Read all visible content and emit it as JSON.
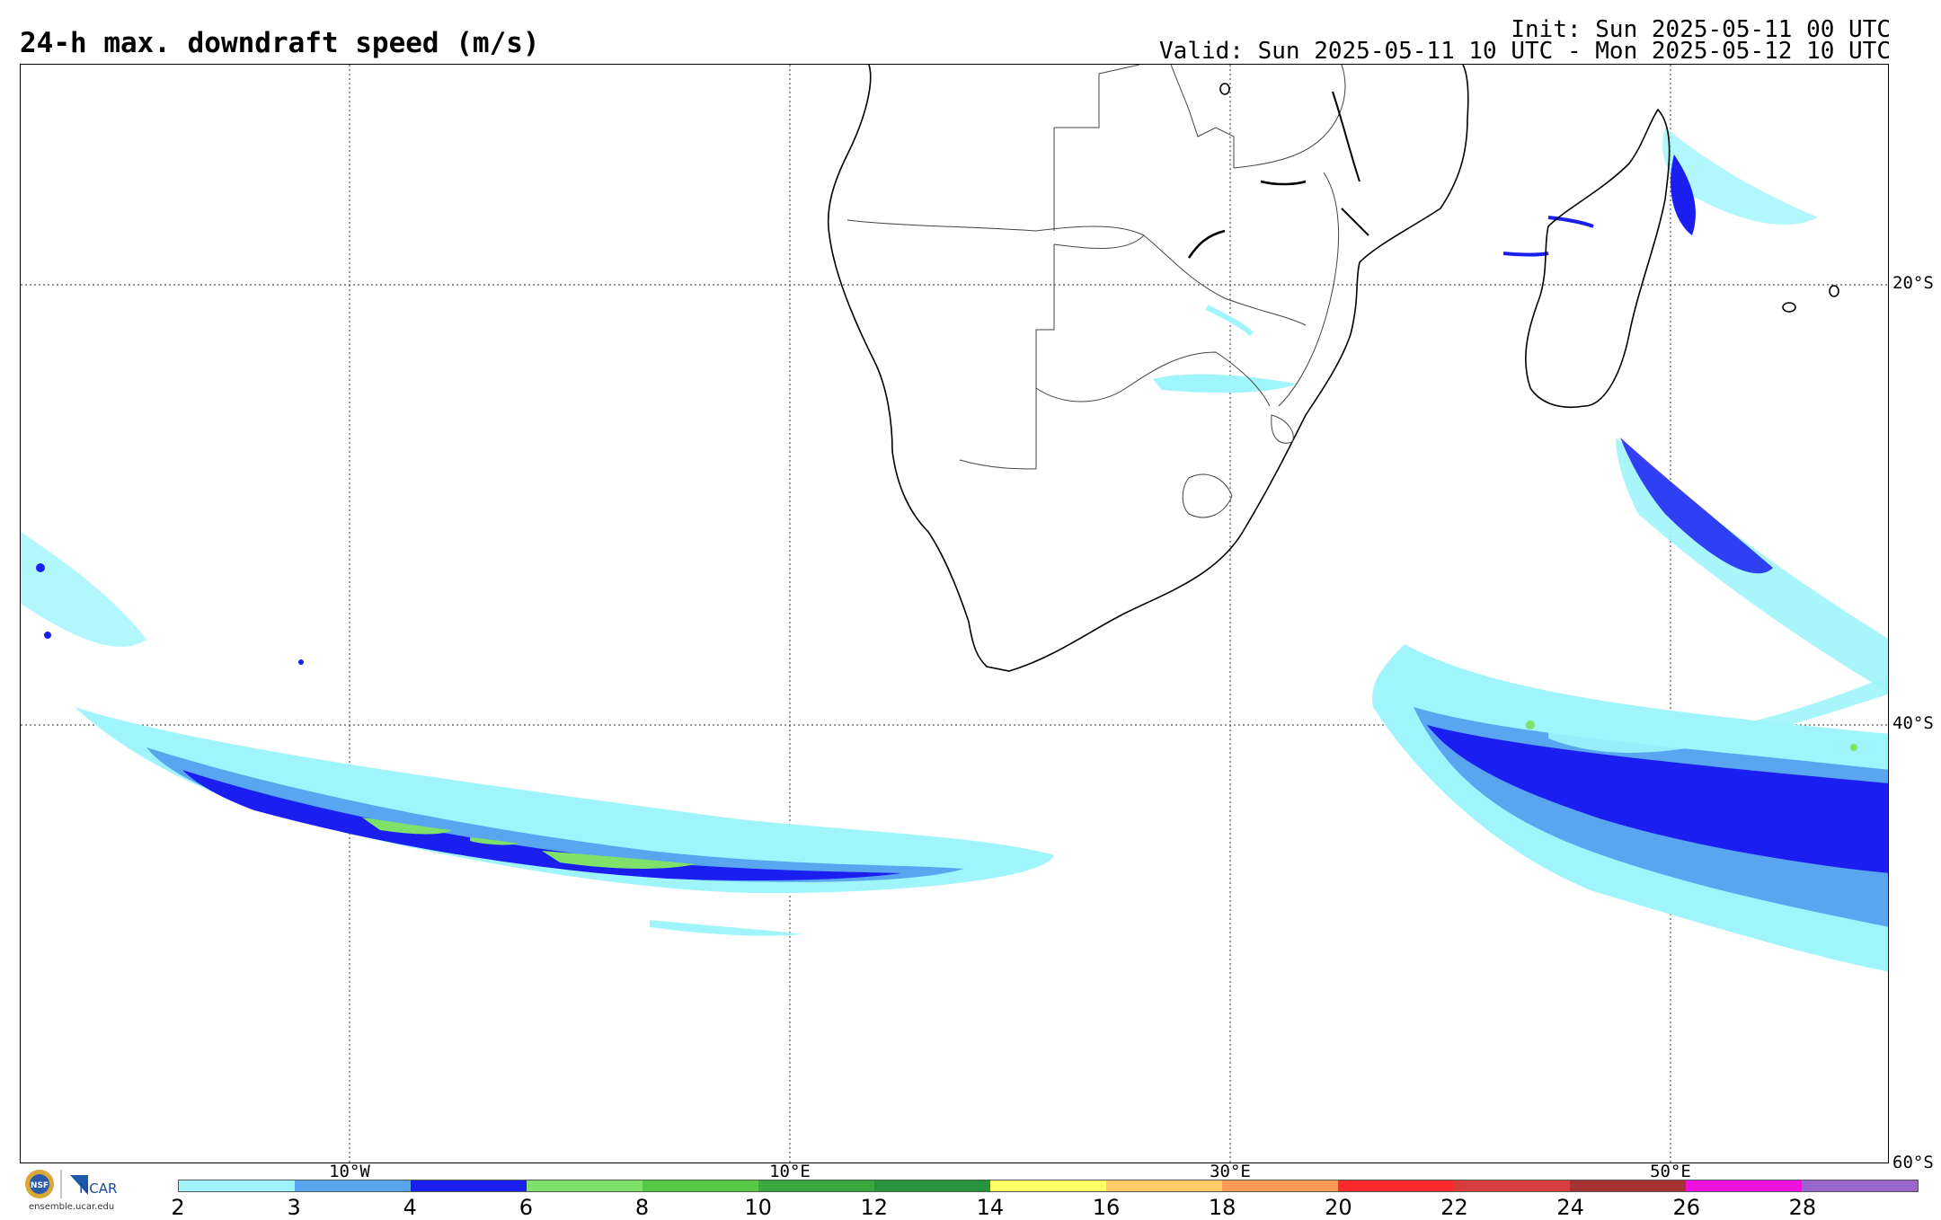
{
  "header": {
    "title": "24-h max. downdraft speed (m/s)",
    "init": "Init: Sun 2025-05-11 00 UTC",
    "valid": "Valid: Sun 2025-05-11 10 UTC - Mon 2025-05-12 10 UTC"
  },
  "map": {
    "lat_labels": [
      "20°S",
      "40°S",
      "60°S"
    ],
    "lon_labels": [
      "10°W",
      "10°E",
      "30°E",
      "50°E"
    ]
  },
  "colorbar": {
    "ticks": [
      "2",
      "3",
      "4",
      "6",
      "8",
      "10",
      "12",
      "14",
      "16",
      "18",
      "20",
      "22",
      "24",
      "26",
      "28"
    ],
    "colors": [
      "#9ff5fb",
      "#5aa5ef",
      "#1a1ef0",
      "#7fe06a",
      "#55c845",
      "#3aa83a",
      "#27933a",
      "#ffff66",
      "#ffcc66",
      "#ff9a55",
      "#ff2a2a",
      "#d83c3c",
      "#a83232",
      "#ee11dd",
      "#9966cc"
    ]
  },
  "logos": {
    "nsf": "NSF",
    "ncar": "NCAR",
    "credit": "ensemble.ucar.edu"
  }
}
